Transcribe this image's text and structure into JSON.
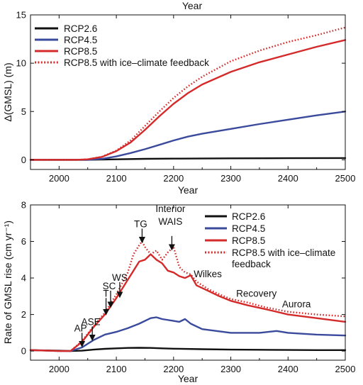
{
  "colors": {
    "rcp26": "#111111",
    "rcp45": "#3a4a9c",
    "rcp85": "#d42a2a",
    "rcp85_fb": "#d42a2a"
  },
  "top_label": "Year",
  "chart_data": [
    {
      "type": "line",
      "xlabel": "Year",
      "ylabel": "Δ(GMSL) (m)",
      "xlim": [
        1950,
        2500
      ],
      "ylim": [
        -1,
        15
      ],
      "xticks": [
        2000,
        2100,
        2200,
        2300,
        2400,
        2500
      ],
      "yticks": [
        0,
        5,
        10,
        15
      ],
      "grid": false,
      "legend": "top-left",
      "series": [
        {
          "name": "RCP2.6",
          "style": "solid",
          "x": [
            1950,
            2000,
            2050,
            2100,
            2150,
            2200,
            2300,
            2400,
            2500
          ],
          "y": [
            0,
            0,
            0,
            0.05,
            0.1,
            0.12,
            0.15,
            0.17,
            0.18
          ]
        },
        {
          "name": "RCP4.5",
          "style": "solid",
          "x": [
            1950,
            2000,
            2050,
            2075,
            2100,
            2125,
            2150,
            2175,
            2200,
            2225,
            2250,
            2300,
            2350,
            2400,
            2450,
            2500
          ],
          "y": [
            0,
            0,
            0,
            0.1,
            0.35,
            0.7,
            1.1,
            1.55,
            2.0,
            2.4,
            2.7,
            3.2,
            3.7,
            4.15,
            4.6,
            5.0
          ]
        },
        {
          "name": "RCP8.5",
          "style": "solid",
          "x": [
            1950,
            2000,
            2030,
            2050,
            2075,
            2100,
            2125,
            2150,
            2175,
            2200,
            2225,
            2250,
            2300,
            2350,
            2400,
            2450,
            2500
          ],
          "y": [
            0,
            0,
            0,
            0.05,
            0.3,
            0.9,
            1.8,
            3.1,
            4.5,
            5.8,
            6.9,
            7.8,
            9.1,
            10.1,
            10.9,
            11.7,
            12.4
          ]
        },
        {
          "name": "RCP8.5 with ice–climate feedback",
          "style": "dotted",
          "x": [
            1950,
            2000,
            2030,
            2050,
            2075,
            2100,
            2125,
            2150,
            2175,
            2200,
            2225,
            2250,
            2300,
            2350,
            2400,
            2450,
            2500
          ],
          "y": [
            0,
            0,
            0,
            0.05,
            0.32,
            0.95,
            2.0,
            3.5,
            5.0,
            6.4,
            7.6,
            8.6,
            10.2,
            11.3,
            12.2,
            12.9,
            13.7
          ]
        }
      ]
    },
    {
      "type": "line",
      "xlabel": "Year",
      "ylabel": "Rate of GMSL rise (cm yr⁻¹)",
      "xlim": [
        1950,
        2500
      ],
      "ylim": [
        -0.5,
        8
      ],
      "xticks": [
        2000,
        2100,
        2200,
        2300,
        2400,
        2500
      ],
      "yticks": [
        0,
        2,
        4,
        6,
        8
      ],
      "grid": false,
      "legend": "top-right",
      "series": [
        {
          "name": "RCP2.6",
          "style": "solid",
          "x": [
            1950,
            2000,
            2020,
            2040,
            2060,
            2080,
            2100,
            2120,
            2140,
            2160,
            2180,
            2200,
            2250,
            2300,
            2350,
            2400,
            2450,
            2500
          ],
          "y": [
            0.05,
            0.02,
            0.0,
            0.02,
            0.08,
            0.12,
            0.15,
            0.17,
            0.18,
            0.17,
            0.15,
            0.13,
            0.1,
            0.08,
            0.07,
            0.06,
            0.05,
            0.05
          ]
        },
        {
          "name": "RCP4.5",
          "style": "solid",
          "x": [
            1950,
            2000,
            2020,
            2040,
            2060,
            2080,
            2100,
            2120,
            2140,
            2160,
            2170,
            2180,
            2200,
            2210,
            2220,
            2230,
            2250,
            2300,
            2350,
            2380,
            2400,
            2450,
            2500
          ],
          "y": [
            0.05,
            0.0,
            0.0,
            0.2,
            0.6,
            0.9,
            1.05,
            1.25,
            1.5,
            1.8,
            1.85,
            1.75,
            1.65,
            1.6,
            1.75,
            1.5,
            1.2,
            1.0,
            1.0,
            1.1,
            1.0,
            0.9,
            0.85
          ]
        },
        {
          "name": "RCP8.5",
          "style": "solid",
          "x": [
            1950,
            2000,
            2020,
            2040,
            2060,
            2080,
            2100,
            2120,
            2130,
            2140,
            2150,
            2160,
            2170,
            2180,
            2190,
            2200,
            2210,
            2220,
            2230,
            2240,
            2260,
            2280,
            2300,
            2330,
            2360,
            2400,
            2450,
            2500
          ],
          "y": [
            0.05,
            0.0,
            0.0,
            0.5,
            1.3,
            2.0,
            2.9,
            3.9,
            4.4,
            4.9,
            5.0,
            5.3,
            5.0,
            4.8,
            4.4,
            4.3,
            4.1,
            4.0,
            4.15,
            3.6,
            3.3,
            3.0,
            2.75,
            2.5,
            2.3,
            2.0,
            1.8,
            1.6
          ]
        },
        {
          "name": "RCP8.5 with ice–climate feedback",
          "style": "dotted",
          "x": [
            1950,
            2000,
            2020,
            2040,
            2060,
            2080,
            2100,
            2120,
            2130,
            2140,
            2145,
            2150,
            2160,
            2170,
            2180,
            2190,
            2200,
            2210,
            2220,
            2230,
            2240,
            2260,
            2280,
            2300,
            2330,
            2360,
            2400,
            2450,
            2500
          ],
          "y": [
            0.05,
            0.0,
            0.0,
            0.55,
            1.35,
            2.1,
            3.1,
            4.3,
            5.3,
            5.8,
            6.0,
            5.7,
            5.3,
            5.5,
            5.0,
            5.4,
            5.7,
            4.6,
            4.3,
            4.2,
            3.8,
            3.4,
            3.1,
            2.85,
            2.65,
            2.4,
            2.15,
            2.0,
            1.9
          ]
        }
      ],
      "annotations": [
        {
          "text": "AP",
          "x": 2040,
          "y": 0.3
        },
        {
          "text": "ASE",
          "x": 2058,
          "y": 0.65
        },
        {
          "text": "T",
          "x": 2082,
          "y": 2.05
        },
        {
          "text": "SC",
          "x": 2090,
          "y": 2.45
        },
        {
          "text": "WS",
          "x": 2106,
          "y": 3.0
        },
        {
          "text": "TG",
          "x": 2145,
          "y": 6.0
        },
        {
          "text": "Interior WAIS",
          "x": 2197,
          "y": 5.6
        },
        {
          "text": "Wilkes",
          "x": 2235,
          "y": 4.2
        },
        {
          "text": "Recovery",
          "x": 2320,
          "y": 2.9
        },
        {
          "text": "Aurora",
          "x": 2390,
          "y": 2.4
        }
      ]
    }
  ]
}
